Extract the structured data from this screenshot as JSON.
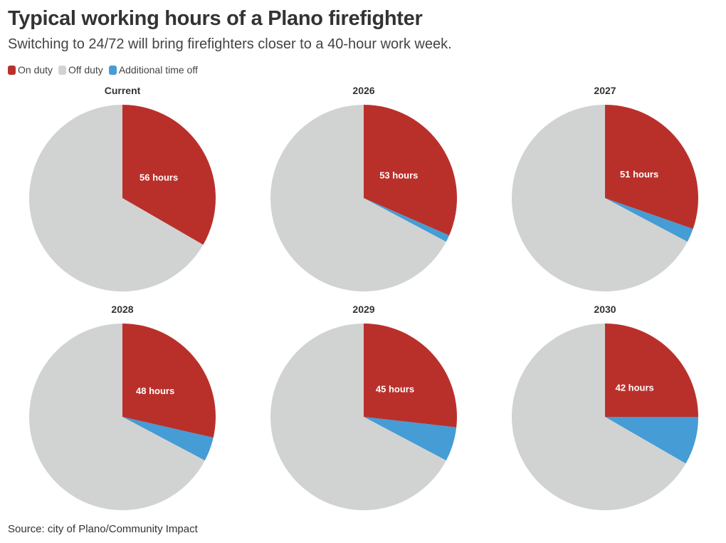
{
  "title": "Typical working hours of a Plano firefighter",
  "subtitle": "Switching to 24/72 will bring firefighters closer to a 40-hour work week.",
  "legend": [
    {
      "label": "On duty",
      "color": "#b9302b"
    },
    {
      "label": "Off duty",
      "color": "#d1d3d3"
    },
    {
      "label": "Additional time off",
      "color": "#469cd4"
    }
  ],
  "source": "Source: city of Plano/Community Impact",
  "chart_data": [
    {
      "type": "pie",
      "title": "Current",
      "categories": [
        "On duty",
        "Additional time off",
        "Off duty"
      ],
      "values": [
        56,
        0,
        112
      ],
      "data_label": "56 hours",
      "colors": [
        "#b9302b",
        "#469cd4",
        "#d1d3d3"
      ]
    },
    {
      "type": "pie",
      "title": "2026",
      "categories": [
        "On duty",
        "Additional time off",
        "Off duty"
      ],
      "values": [
        53,
        2,
        113
      ],
      "data_label": "53 hours",
      "colors": [
        "#b9302b",
        "#469cd4",
        "#d1d3d3"
      ]
    },
    {
      "type": "pie",
      "title": "2027",
      "categories": [
        "On duty",
        "Additional time off",
        "Off duty"
      ],
      "values": [
        51,
        4,
        113
      ],
      "data_label": "51 hours",
      "colors": [
        "#b9302b",
        "#469cd4",
        "#d1d3d3"
      ]
    },
    {
      "type": "pie",
      "title": "2028",
      "categories": [
        "On duty",
        "Additional time off",
        "Off duty"
      ],
      "values": [
        48,
        7,
        113
      ],
      "data_label": "48 hours",
      "colors": [
        "#b9302b",
        "#469cd4",
        "#d1d3d3"
      ]
    },
    {
      "type": "pie",
      "title": "2029",
      "categories": [
        "On duty",
        "Additional time off",
        "Off duty"
      ],
      "values": [
        45,
        10,
        113
      ],
      "data_label": "45 hours",
      "colors": [
        "#b9302b",
        "#469cd4",
        "#d1d3d3"
      ]
    },
    {
      "type": "pie",
      "title": "2030",
      "categories": [
        "On duty",
        "Additional time off",
        "Off duty"
      ],
      "values": [
        42,
        14,
        112
      ],
      "data_label": "42 hours",
      "colors": [
        "#b9302b",
        "#469cd4",
        "#d1d3d3"
      ]
    }
  ]
}
